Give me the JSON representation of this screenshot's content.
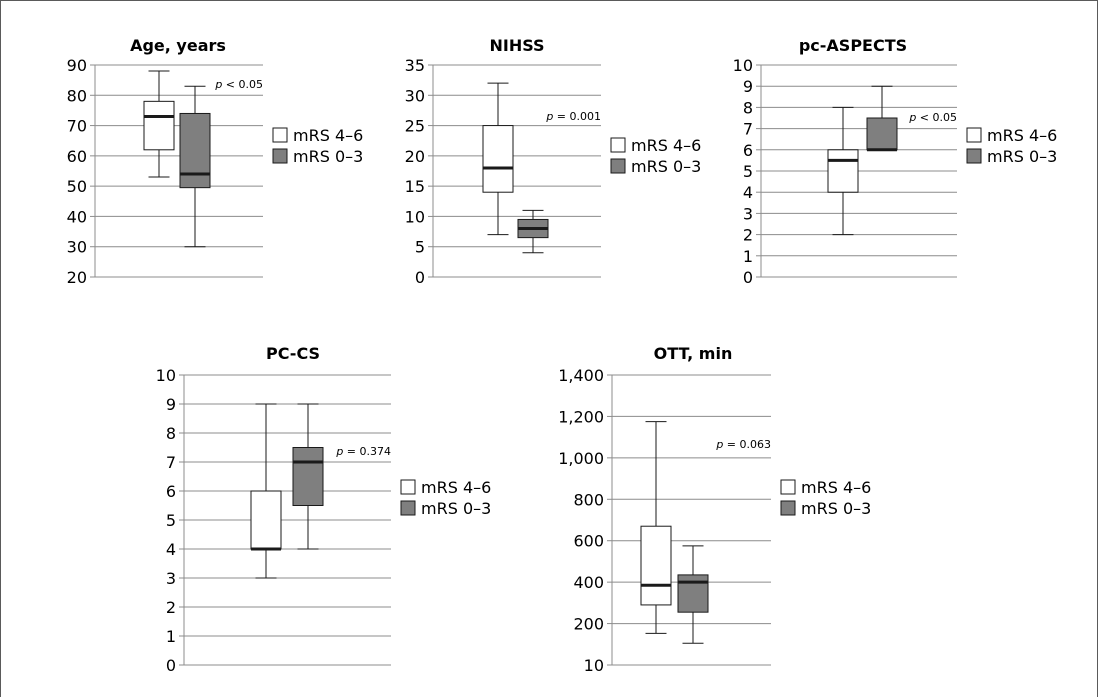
{
  "colors": {
    "group_a_fill": "#ffffff",
    "group_b_fill": "#7f7f7f",
    "box_stroke": "#1a1a1a",
    "gridline": "#8c8c8c",
    "frame": "#5a5a5a"
  },
  "chart_data": [
    {
      "type": "box",
      "title": "Age, years",
      "xlabel": "",
      "ylabel": "",
      "ylim": [
        20,
        90
      ],
      "y_ticks": [
        "20",
        "30",
        "40",
        "50",
        "60",
        "70",
        "80",
        "90"
      ],
      "tick_values": [
        20,
        30,
        40,
        50,
        60,
        70,
        80,
        90
      ],
      "grid": true,
      "legend": [
        "mRS 4–6",
        "mRS 0–3"
      ],
      "legend_position": "right",
      "annotation": {
        "stat": "p",
        "text": " < 0.05"
      },
      "series": [
        {
          "name": "mRS 4–6",
          "min": 53,
          "q1": 62,
          "median": 73,
          "q3": 78,
          "max": 88
        },
        {
          "name": "mRS 0–3",
          "min": 30,
          "q1": 49.5,
          "median": 54,
          "q3": 74,
          "max": 83
        }
      ]
    },
    {
      "type": "box",
      "title": "NIHSS",
      "xlabel": "",
      "ylabel": "",
      "ylim": [
        0,
        35
      ],
      "y_ticks": [
        "0",
        "5",
        "10",
        "15",
        "20",
        "25",
        "30",
        "35"
      ],
      "tick_values": [
        0,
        5,
        10,
        15,
        20,
        25,
        30,
        35
      ],
      "grid": true,
      "legend": [
        "mRS 4–6",
        "mRS 0–3"
      ],
      "legend_position": "right",
      "annotation": {
        "stat": "p",
        "text": " = 0.001"
      },
      "series": [
        {
          "name": "mRS 4–6",
          "min": 7,
          "q1": 14,
          "median": 18,
          "q3": 25,
          "max": 32
        },
        {
          "name": "mRS 0–3",
          "min": 4,
          "q1": 6.5,
          "median": 8,
          "q3": 9.5,
          "max": 11
        }
      ]
    },
    {
      "type": "box",
      "title": "pc-ASPECTS",
      "xlabel": "",
      "ylabel": "",
      "ylim": [
        0,
        10
      ],
      "y_ticks": [
        "0",
        "1",
        "2",
        "3",
        "4",
        "5",
        "6",
        "7",
        "8",
        "9",
        "10"
      ],
      "tick_values": [
        0,
        1,
        2,
        3,
        4,
        5,
        6,
        7,
        8,
        9,
        10
      ],
      "grid": true,
      "legend": [
        "mRS 4–6",
        "mRS 0–3"
      ],
      "legend_position": "right",
      "annotation": {
        "stat": "p",
        "text": " < 0.05"
      },
      "series": [
        {
          "name": "mRS 4–6",
          "min": 2,
          "q1": 4,
          "median": 5.5,
          "q3": 6,
          "max": 8
        },
        {
          "name": "mRS 0–3",
          "min": 6,
          "q1": 6,
          "median": 6,
          "q3": 7.5,
          "max": 9
        }
      ]
    },
    {
      "type": "box",
      "title": "PC-CS",
      "xlabel": "",
      "ylabel": "",
      "ylim": [
        0,
        10
      ],
      "y_ticks": [
        "0",
        "1",
        "2",
        "3",
        "4",
        "5",
        "6",
        "7",
        "8",
        "9",
        "10"
      ],
      "tick_values": [
        0,
        1,
        2,
        3,
        4,
        5,
        6,
        7,
        8,
        9,
        10
      ],
      "grid": true,
      "legend": [
        "mRS 4–6",
        "mRS 0–3"
      ],
      "legend_position": "right",
      "annotation": {
        "stat": "p",
        "text": " = 0.374"
      },
      "series": [
        {
          "name": "mRS 4–6",
          "min": 3,
          "q1": 4,
          "median": 4,
          "q3": 6,
          "max": 9
        },
        {
          "name": "mRS 0–3",
          "min": 4,
          "q1": 5.5,
          "median": 7,
          "q3": 7.5,
          "max": 9
        }
      ]
    },
    {
      "type": "box",
      "title": "OTT, min",
      "xlabel": "",
      "ylabel": "",
      "ylim": [
        10,
        1400
      ],
      "y_ticks": [
        "10",
        "200",
        "400",
        "600",
        "800",
        "1,000",
        "1,200",
        "1,400"
      ],
      "tick_values": [
        10,
        200,
        400,
        600,
        800,
        1000,
        1200,
        1400
      ],
      "grid": true,
      "legend": [
        "mRS 4–6",
        "mRS 0–3"
      ],
      "legend_position": "right",
      "annotation": {
        "stat": "p",
        "text": " = 0.063"
      },
      "series": [
        {
          "name": "mRS 4–6",
          "min": 155,
          "q1": 290,
          "median": 385,
          "q3": 670,
          "max": 1175
        },
        {
          "name": "mRS 0–3",
          "min": 110,
          "q1": 255,
          "median": 400,
          "q3": 435,
          "max": 575
        }
      ]
    }
  ]
}
